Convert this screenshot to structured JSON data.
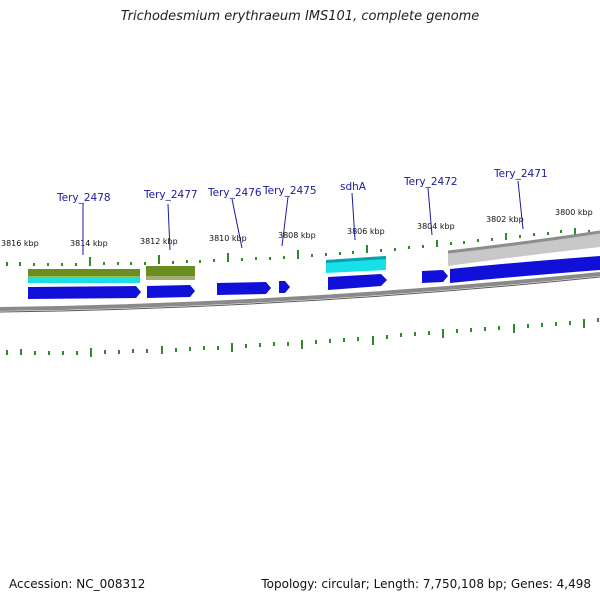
{
  "title": "Trichodesmium erythraeum IMS101, complete genome",
  "footer": {
    "accession": "Accession: NC_008312",
    "summary": "Topology: circular; Length: 7,750,108 bp; Genes: 4,498"
  },
  "colors": {
    "backbone": "#888888",
    "tick": "#2e8b2e",
    "gene_forward": "#1010d8",
    "cds_cyan": "#17e0e8",
    "olive": "#6b8e23",
    "rrna_gray": "#b5b5b5",
    "label": "#1a1a9c"
  },
  "scale_labels": [
    "3816 kbp",
    "3814 kbp",
    "3812 kbp",
    "3810 kbp",
    "3808 kbp",
    "3806 kbp",
    "3804 kbp",
    "3802 kbp",
    "3800 kbp"
  ],
  "gene_labels": [
    "Tery_2478",
    "Tery_2477",
    "Tery_2476",
    "Tery_2475",
    "sdhA",
    "Tery_2472",
    "Tery_2471"
  ]
}
